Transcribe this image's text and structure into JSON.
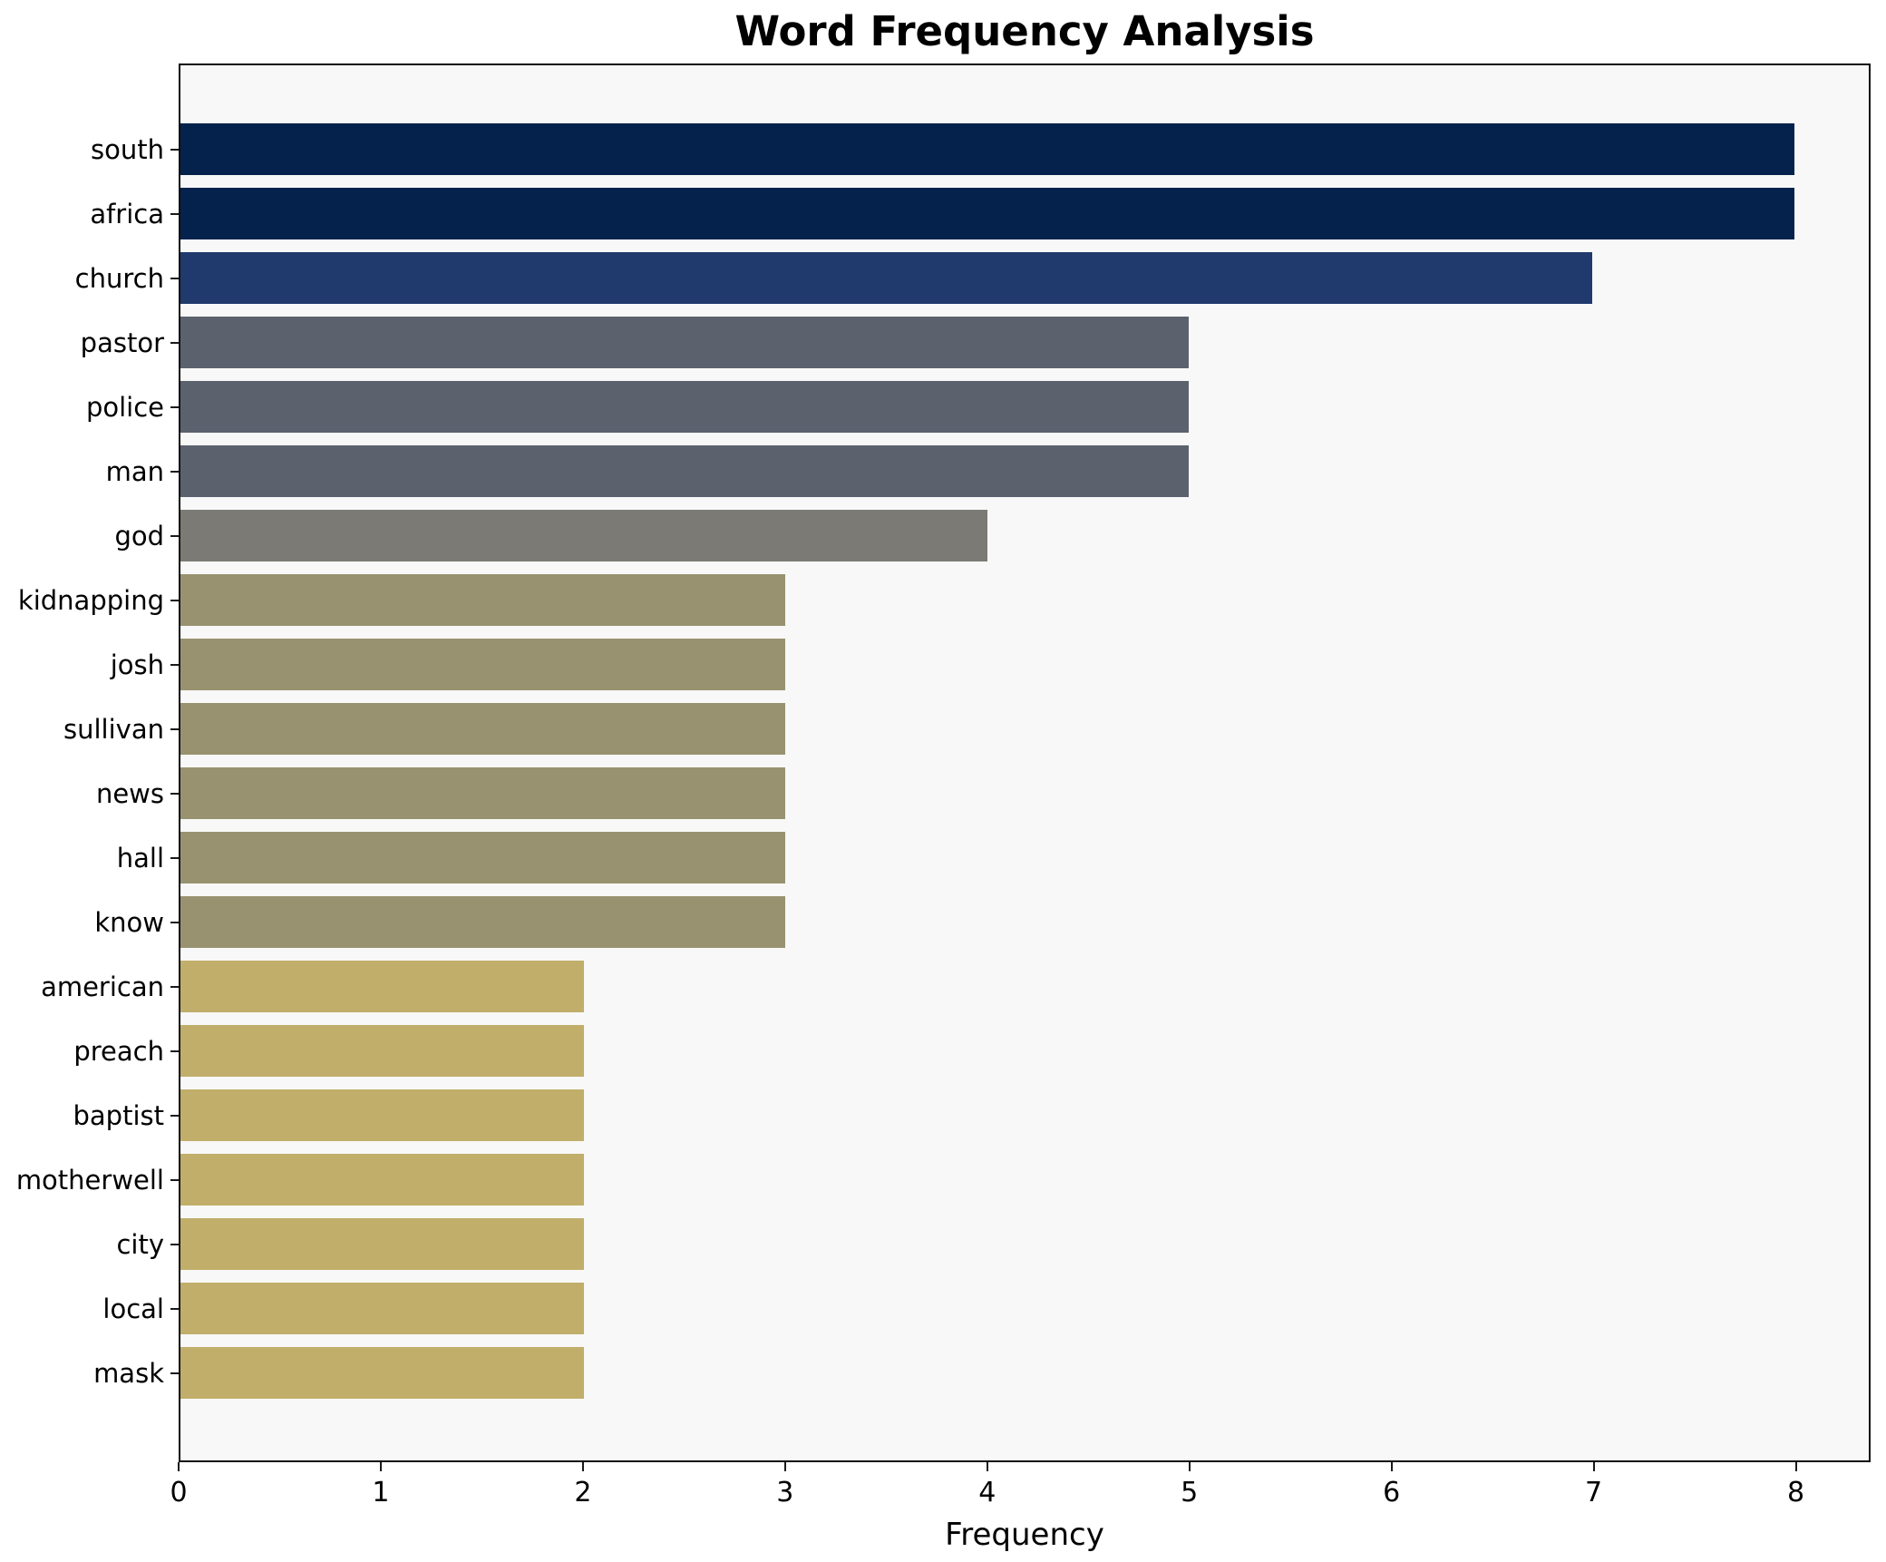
{
  "figure": {
    "background": "#ffffff",
    "plot_background": "#f8f8f8",
    "spine_color": "#0d0d0d",
    "tick_color": "#1a1a1a",
    "text_color": "#000000"
  },
  "chart_data": {
    "type": "bar",
    "orientation": "horizontal",
    "title": "Word Frequency Analysis",
    "xlabel": "Frequency",
    "ylabel": "",
    "categories": [
      "south",
      "africa",
      "church",
      "pastor",
      "police",
      "man",
      "god",
      "kidnapping",
      "josh",
      "sullivan",
      "news",
      "hall",
      "know",
      "american",
      "preach",
      "baptist",
      "motherwell",
      "city",
      "local",
      "mask"
    ],
    "values": [
      8,
      8,
      7,
      5,
      5,
      5,
      4,
      3,
      3,
      3,
      3,
      3,
      3,
      2,
      2,
      2,
      2,
      2,
      2,
      2
    ],
    "bar_colors": [
      "#05224c",
      "#05224c",
      "#203a6d",
      "#5c616e",
      "#5c616e",
      "#5c616e",
      "#7b7a74",
      "#999270",
      "#999270",
      "#999270",
      "#999270",
      "#999270",
      "#999270",
      "#c0ae6a",
      "#c0ae6a",
      "#c0ae6a",
      "#c0ae6a",
      "#c0ae6a",
      "#c0ae6a",
      "#c0ae6a"
    ],
    "value_color_map": {
      "8": "#05224c",
      "7": "#203a6d",
      "5": "#5c616e",
      "4": "#7b7a74",
      "3": "#999270",
      "2": "#c0ae6a"
    },
    "xticks": [
      0,
      1,
      2,
      3,
      4,
      5,
      6,
      7,
      8
    ],
    "xlim": [
      0,
      8.37
    ],
    "grid": false,
    "legend_position": "none"
  }
}
